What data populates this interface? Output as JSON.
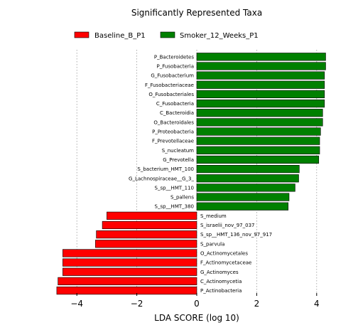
{
  "chart_data": {
    "type": "bar",
    "orientation": "horizontal",
    "title": "Significantly Represented Taxa",
    "xlabel": "LDA SCORE (log 10)",
    "ylabel": "",
    "xlim": [
      -5,
      5
    ],
    "xticks": [
      -4,
      -2,
      0,
      2,
      4
    ],
    "xtick_labels": [
      "−4",
      "−2",
      "0",
      "2",
      "4"
    ],
    "grid": "vertical dotted",
    "legend_position": "top",
    "series": [
      {
        "name": "Baseline_B_P1",
        "color": "#ff0000"
      },
      {
        "name": "Smoker_12_Weeks_P1",
        "color": "#008000"
      }
    ],
    "bars": [
      {
        "label": "P_Bacteroidetes",
        "value": 4.3,
        "series": 1
      },
      {
        "label": "P_Fusobacteria",
        "value": 4.3,
        "series": 1
      },
      {
        "label": "G_Fusobacterium",
        "value": 4.26,
        "series": 1
      },
      {
        "label": "F_Fusobacteriaceae",
        "value": 4.26,
        "series": 1
      },
      {
        "label": "O_Fusobacteriales",
        "value": 4.26,
        "series": 1
      },
      {
        "label": "C_Fusobacteria",
        "value": 4.26,
        "series": 1
      },
      {
        "label": "C_Bacteroidia",
        "value": 4.2,
        "series": 1
      },
      {
        "label": "O_Bacteroidales",
        "value": 4.2,
        "series": 1
      },
      {
        "label": "P_Proteobacteria",
        "value": 4.13,
        "series": 1
      },
      {
        "label": "F_Prevotellaceae",
        "value": 4.1,
        "series": 1
      },
      {
        "label": "S_nucleatum",
        "value": 4.1,
        "series": 1
      },
      {
        "label": "G_Prevotella",
        "value": 4.07,
        "series": 1
      },
      {
        "label": "S_bacterium_HMT_100",
        "value": 3.42,
        "series": 1
      },
      {
        "label": "G_Lachnospiraceae__G_3_",
        "value": 3.4,
        "series": 1
      },
      {
        "label": "S_sp__HMT_110",
        "value": 3.28,
        "series": 1
      },
      {
        "label": "S_pallens",
        "value": 3.08,
        "series": 1
      },
      {
        "label": "S_sp__HMT_380",
        "value": 3.05,
        "series": 1
      },
      {
        "label": "S_medium",
        "value": -3.0,
        "series": 0
      },
      {
        "label": "S_israelii_nov_97_037",
        "value": -3.15,
        "series": 0
      },
      {
        "label": "S_sp__HMT_136_nov_97_917",
        "value": -3.35,
        "series": 0
      },
      {
        "label": "S_parvula",
        "value": -3.38,
        "series": 0
      },
      {
        "label": "O_Actinomycetales",
        "value": -4.47,
        "series": 0
      },
      {
        "label": "F_Actinomycetaceae",
        "value": -4.47,
        "series": 0
      },
      {
        "label": "G_Actinomyces",
        "value": -4.47,
        "series": 0
      },
      {
        "label": "C_Actinomycetia",
        "value": -4.63,
        "series": 0
      },
      {
        "label": "P_Actinobacteria",
        "value": -4.67,
        "series": 0
      }
    ]
  }
}
